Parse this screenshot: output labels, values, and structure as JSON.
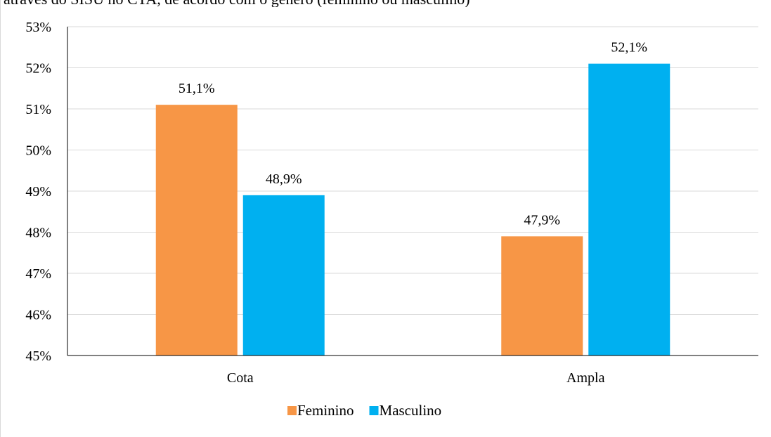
{
  "title_fragment": "através do SISU no CTA, de acordo com o gênero (feminino ou masculino)",
  "chart_data": {
    "type": "bar",
    "title": "",
    "categories": [
      "Cota",
      "Ampla"
    ],
    "series": [
      {
        "name": "Feminino",
        "values": [
          51.1,
          47.9
        ],
        "labels": [
          "51,1%",
          "47,9%"
        ],
        "color": "#F79646"
      },
      {
        "name": "Masculino",
        "values": [
          48.9,
          52.1
        ],
        "labels": [
          "48,9%",
          "52,1%"
        ],
        "color": "#00B0F0"
      }
    ],
    "xlabel": "",
    "ylabel": "",
    "ylim": [
      45,
      53
    ],
    "yticks": [
      "45%",
      "46%",
      "47%",
      "48%",
      "49%",
      "50%",
      "51%",
      "52%",
      "53%"
    ],
    "grid": true,
    "legend": "bottom"
  }
}
